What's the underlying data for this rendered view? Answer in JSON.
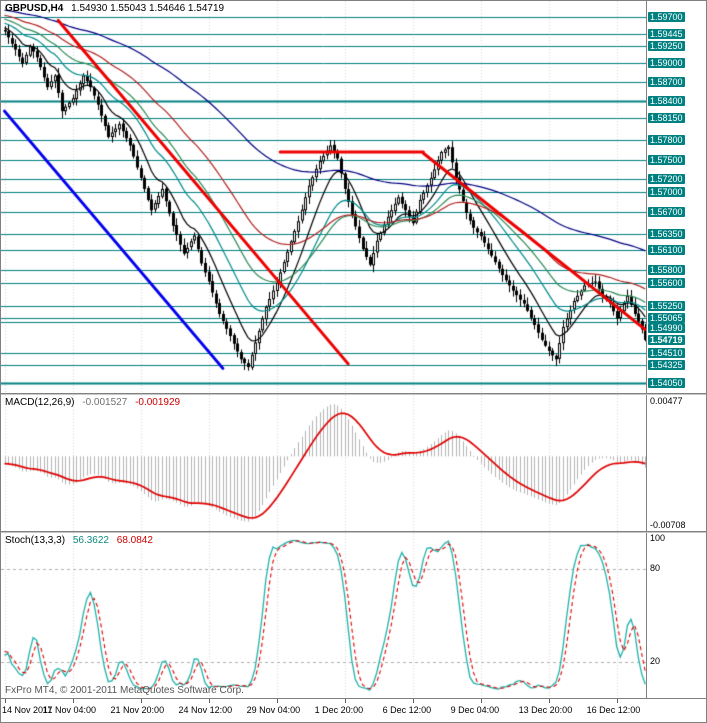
{
  "header": {
    "symbol": "GBPUSD,H4",
    "quote": "1.54930 1.55043 1.54646 1.54719"
  },
  "panels": {
    "macd": {
      "title": "MACD(12,26,9)",
      "value_main": "-0.001527",
      "value_signal": "-0.001929",
      "axis_max": "0.00477",
      "axis_min": "-0.00708"
    },
    "stoch": {
      "title": "Stoch(13,3,3)",
      "value_k": "56.3622",
      "value_d": "68.0842",
      "axis_labels": [
        "100",
        "80",
        "20"
      ]
    }
  },
  "footer": {
    "text": "FxPro MT4, © 2001-2011 MetaQuotes Software Corp."
  },
  "time_axis": {
    "labels": [
      "14 Nov 2011",
      "17 Nov 04:00",
      "21 Nov 20:00",
      "24 Nov 12:00",
      "29 Nov 04:00",
      "1 Dec 20:00",
      "6 Dec 12:00",
      "9 Dec 04:00",
      "13 Dec 20:00",
      "16 Dec 12:00"
    ],
    "bar_indices": [
      0,
      19,
      38,
      57,
      76,
      95,
      114,
      133,
      152,
      171
    ]
  },
  "price_axis": {
    "labels": [
      "1.59700",
      "1.59445",
      "1.59250",
      "1.59000",
      "1.58700",
      "1.58400",
      "1.58150",
      "1.57800",
      "1.57500",
      "1.57200",
      "1.57000",
      "1.56700",
      "1.56350",
      "1.56100",
      "1.55800",
      "1.55600",
      "1.55250",
      "1.55065",
      "1.54990",
      "1.54510",
      "1.54325",
      "1.54050"
    ],
    "current": "1.54719"
  },
  "chart_data": {
    "type": "candlestick",
    "symbol": "GBPUSD",
    "timeframe": "H4",
    "visible_bars": 180,
    "warmup_bars": 30,
    "price_range": {
      "top": 1.5995,
      "bottom": 1.539
    },
    "closes": [
      1.599,
      1.5996,
      1.5988,
      1.5992,
      1.5984,
      1.5988,
      1.598,
      1.5985,
      1.5976,
      1.5981,
      1.5973,
      1.5978,
      1.597,
      1.5975,
      1.5967,
      1.5972,
      1.5964,
      1.5969,
      1.5961,
      1.5966,
      1.5958,
      1.5963,
      1.5955,
      1.596,
      1.5952,
      1.5957,
      1.5949,
      1.5954,
      1.5946,
      1.5951,
      1.5948,
      1.5939,
      1.5929,
      1.592,
      1.5909,
      1.5898,
      1.5912,
      1.5925,
      1.5917,
      1.5908,
      1.5893,
      1.5877,
      1.5862,
      1.5871,
      1.588,
      1.5853,
      1.5825,
      1.5832,
      1.5838,
      1.5845,
      1.5857,
      1.5868,
      1.588,
      1.5871,
      1.5862,
      1.5849,
      1.5835,
      1.5818,
      1.5802,
      1.5785,
      1.5792,
      1.5798,
      1.5805,
      1.5794,
      1.5783,
      1.5772,
      1.5755,
      1.5738,
      1.5722,
      1.5705,
      1.5688,
      1.5672,
      1.5683,
      1.5694,
      1.5705,
      1.5686,
      1.5667,
      1.5648,
      1.5634,
      1.5619,
      1.5605,
      1.5614,
      1.5624,
      1.5633,
      1.5612,
      1.559,
      1.5576,
      1.5562,
      1.5545,
      1.5528,
      1.5512,
      1.5501,
      1.5489,
      1.5478,
      1.5466,
      1.5454,
      1.5442,
      1.5436,
      1.543,
      1.5449,
      1.5468,
      1.5486,
      1.5505,
      1.5523,
      1.5535,
      1.5548,
      1.556,
      1.5576,
      1.5592,
      1.5608,
      1.5624,
      1.564,
      1.5655,
      1.5673,
      1.5692,
      1.571,
      1.5723,
      1.5736,
      1.5748,
      1.5756,
      1.5764,
      1.5772,
      1.5762,
      1.5752,
      1.5729,
      1.5705,
      1.5685,
      1.5665,
      1.5647,
      1.5629,
      1.5612,
      1.56,
      1.5588,
      1.5606,
      1.5625,
      1.5637,
      1.565,
      1.5662,
      1.5672,
      1.5682,
      1.5692,
      1.5682,
      1.5672,
      1.5662,
      1.5652,
      1.567,
      1.5688,
      1.5699,
      1.5711,
      1.5722,
      1.5735,
      1.5749,
      1.5762,
      1.5766,
      1.577,
      1.5746,
      1.5722,
      1.5704,
      1.5686,
      1.5668,
      1.5656,
      1.5645,
      1.5638,
      1.5632,
      1.5622,
      1.5612,
      1.5602,
      1.5592,
      1.5582,
      1.5572,
      1.5564,
      1.5556,
      1.5548,
      1.5541,
      1.5534,
      1.5528,
      1.5517,
      1.5506,
      1.5495,
      1.5483,
      1.5472,
      1.5463,
      1.5455,
      1.5448,
      1.5442,
      1.5467,
      1.5492,
      1.5505,
      1.5518,
      1.5532,
      1.554,
      1.5548,
      1.5556,
      1.5558,
      1.556,
      1.5562,
      1.5551,
      1.554,
      1.5534,
      1.5528,
      1.5516,
      1.5505,
      1.5517,
      1.5529,
      1.554,
      1.5526,
      1.5512,
      1.55,
      1.5488,
      1.5472
    ],
    "hlines": [
      {
        "price": 1.597,
        "width": 1
      },
      {
        "price": 1.59445,
        "width": 1
      },
      {
        "price": 1.5925,
        "width": 1
      },
      {
        "price": 1.59,
        "width": 1
      },
      {
        "price": 1.587,
        "width": 1
      },
      {
        "price": 1.584,
        "width": 2
      },
      {
        "price": 1.5815,
        "width": 1
      },
      {
        "price": 1.578,
        "width": 1
      },
      {
        "price": 1.575,
        "width": 1
      },
      {
        "price": 1.572,
        "width": 1
      },
      {
        "price": 1.57,
        "width": 1
      },
      {
        "price": 1.567,
        "width": 1
      },
      {
        "price": 1.5635,
        "width": 1
      },
      {
        "price": 1.561,
        "width": 1
      },
      {
        "price": 1.558,
        "width": 1
      },
      {
        "price": 1.556,
        "width": 1
      },
      {
        "price": 1.5525,
        "width": 1
      },
      {
        "price": 1.55065,
        "width": 1
      },
      {
        "price": 1.5499,
        "width": 1
      },
      {
        "price": 1.5451,
        "width": 1
      },
      {
        "price": 1.54325,
        "width": 1
      },
      {
        "price": 1.5405,
        "width": 2
      }
    ],
    "trendlines": [
      {
        "name": "blue-downtrend",
        "color": "#0000ee",
        "width": 3,
        "x1_bar": 0,
        "y1_price": 1.5825,
        "x2_bar": 61,
        "y2_price": 1.5428
      },
      {
        "name": "red-downtrend-1",
        "color": "#ee0000",
        "width": 3,
        "x1_bar": 15,
        "y1_price": 1.5965,
        "x2_bar": 96,
        "y2_price": 1.5435
      },
      {
        "name": "red-resistance",
        "color": "#ee0000",
        "width": 3,
        "x1_bar": 77,
        "y1_price": 1.5762,
        "x2_bar": 117,
        "y2_price": 1.5762
      },
      {
        "name": "red-downtrend-2",
        "color": "#ee0000",
        "width": 3,
        "x1_bar": 117,
        "y1_price": 1.576,
        "x2_bar": 179,
        "y2_price": 1.5488
      }
    ],
    "moving_averages": [
      {
        "period": 10,
        "color": "#000000"
      },
      {
        "period": 21,
        "color": "#008b8b"
      },
      {
        "period": 34,
        "color": "#2e8b57"
      },
      {
        "period": 55,
        "color": "#b22222"
      },
      {
        "period": 120,
        "color": "#000080"
      }
    ],
    "indicators": {
      "macd": {
        "fast": 12,
        "slow": 26,
        "signal": 9
      },
      "stoch": {
        "k": 13,
        "slowing": 3,
        "d": 3,
        "levels": [
          80,
          20
        ]
      }
    },
    "colors": {
      "teal": "#008080",
      "grid": "#d9d9d9",
      "bull": "#ffffff",
      "bear": "#000000",
      "macd_hist": "#b4b4b4",
      "macd_signal": "#e00000",
      "stoch_k": "#20b2aa",
      "stoch_d": "#e00000"
    }
  }
}
